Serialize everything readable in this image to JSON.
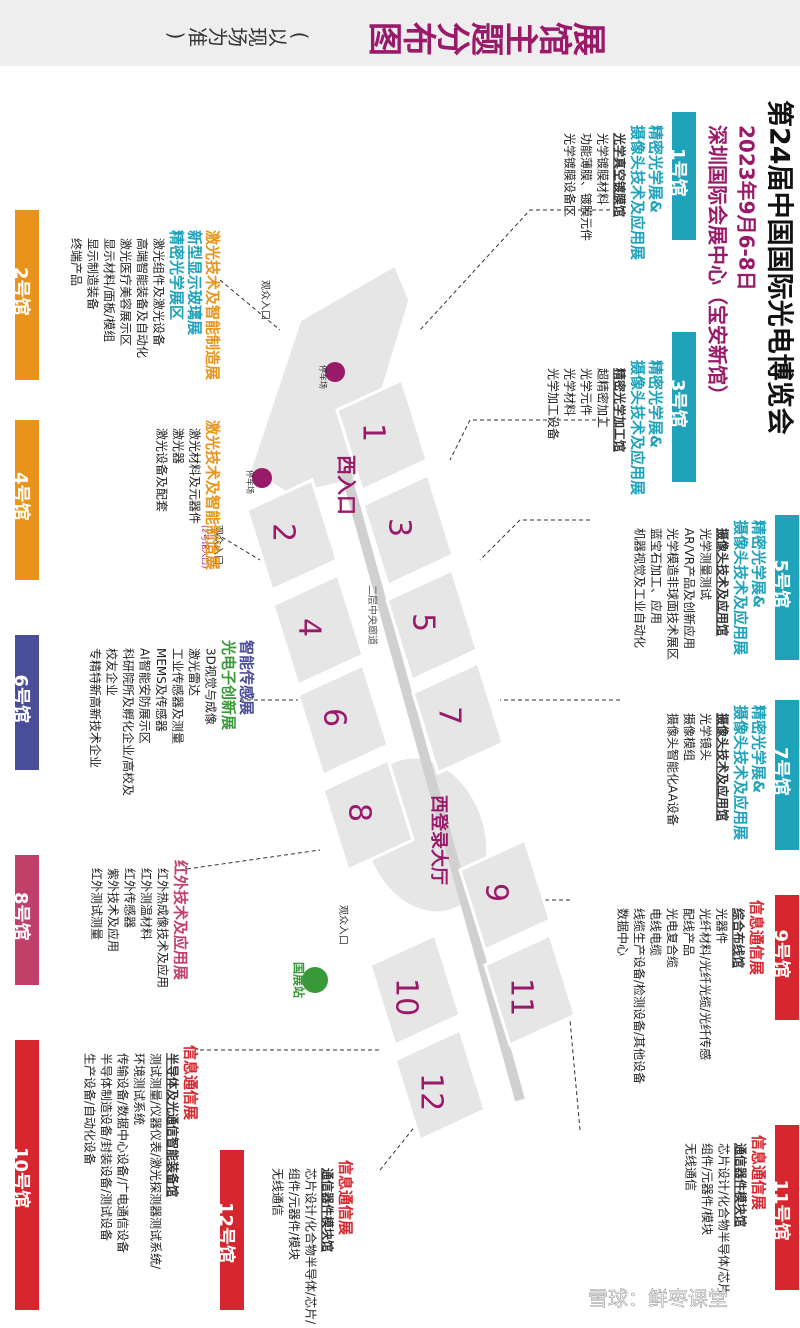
{
  "header": {
    "title": "展馆主题分布图",
    "note": "(以现场为准)",
    "event": "第24届中国国际光电博览会",
    "date": "2023年9月6-8日",
    "venue": "深圳国际会展中心（宝安新馆）"
  },
  "halls": [
    {
      "label": "1号馆",
      "color": "#1ea3ba",
      "exhibitions": [
        {
          "text": "精密光学展&",
          "color": "#1ea3ba"
        },
        {
          "text": "摄像头技术及应用展",
          "color": "#1ea3ba"
        }
      ],
      "sub": "光学真空镀膜馆",
      "items": [
        "光学镀膜材料",
        "功能薄膜、镀膜元件",
        "光学镀膜设备区"
      ]
    },
    {
      "label": "3号馆",
      "color": "#1ea3ba",
      "exhibitions": [
        {
          "text": "精密光学展&",
          "color": "#1ea3ba"
        },
        {
          "text": "摄像头技术及应用展",
          "color": "#1ea3ba"
        }
      ],
      "sub": "精密光学加工馆",
      "items": [
        "超精密加工",
        "光学元件",
        "光学材料",
        "光学加工设备"
      ]
    },
    {
      "label": "5号馆",
      "color": "#1ea3ba",
      "exhibitions": [
        {
          "text": "精密光学展&",
          "color": "#1ea3ba"
        },
        {
          "text": "摄像头技术及应用展",
          "color": "#1ea3ba"
        }
      ],
      "sub": "摄像头技术及应用馆",
      "items": [
        "光学测量测试",
        "AR/VR产品及创新应用",
        "光学模造非球面技术展区",
        "蓝宝石加工、应用",
        "机器视觉及工业自动化"
      ]
    },
    {
      "label": "7号馆",
      "color": "#1ea3ba",
      "exhibitions": [
        {
          "text": "精密光学展&",
          "color": "#1ea3ba"
        },
        {
          "text": "摄像头技术及应用展",
          "color": "#1ea3ba"
        }
      ],
      "sub": "摄像头技术及应用馆",
      "items": [
        "光学镜头",
        "摄像模组",
        "摄像头智能化AA设备"
      ]
    },
    {
      "label": "9号馆",
      "color": "#d7262e",
      "exhibitions": [
        {
          "text": "信息通信展",
          "color": "#d7262e"
        }
      ],
      "sub": "综合布线馆",
      "items": [
        "光器件",
        "光纤材料/光纤光缆/光纤传感",
        "配线产品",
        "光电复合缆",
        "电线电缆",
        "线缆生产设备/检测设备/其他设备",
        "数据中心"
      ]
    },
    {
      "label": "11号馆",
      "color": "#d7262e",
      "exhibitions": [
        {
          "text": "信息通信展",
          "color": "#d7262e"
        }
      ],
      "sub": "通信器件模块馆",
      "items": [
        "芯片设计/化合物半导体/芯片",
        "组件/元器件/模块",
        "无线通信"
      ]
    },
    {
      "label": "12号馆",
      "color": "#d7262e",
      "exhibitions": [
        {
          "text": "信息通信展",
          "color": "#d7262e"
        }
      ],
      "sub": "通信器件模块馆",
      "items": [
        "芯片设计/化合物半导体/芯片/",
        "组件/元器件/模块",
        "无线通信"
      ]
    },
    {
      "label": "10号馆",
      "color": "#d7262e",
      "exhibitions": [
        {
          "text": "信息通信展",
          "color": "#d7262e"
        }
      ],
      "sub": "半导体及光通信智能装备馆",
      "items": [
        "测试测量/仪器仪表/激光探测器测试系统/",
        "环境测试系统",
        "传输设备/数据中心设备/广电通信设备",
        "半导体制造设备/封装设备/测试设备",
        "生产设备/自动化设备"
      ]
    },
    {
      "label": "2号馆",
      "color": "#e8941a",
      "exhibitions": [
        {
          "text": "激光技术及智能制造展",
          "color": "#e8941a"
        },
        {
          "text": "新型显示玻璃展",
          "color": "#1ea3ba"
        },
        {
          "text": "精密光学展区",
          "color": "#1ea3ba"
        }
      ],
      "sub": null,
      "items": [
        "激光组件及激光设备",
        "高端智能装备及自动化",
        "激光医疗美容展示区",
        "显示材料/面板/模组",
        "显示制造装备",
        "终端产品"
      ]
    },
    {
      "label": "4号馆",
      "color": "#e8941a",
      "exhibitions": [
        {
          "text": "激光技术及智能制造展",
          "color": "#e8941a"
        }
      ],
      "sub": null,
      "items": [
        "激光材料及元器件",
        "激光器",
        "激光设备及配套"
      ]
    },
    {
      "label": "6号馆",
      "color": "#4a4d9a",
      "exhibitions": [
        {
          "text": "智能传感展",
          "color": "#4a4d9a"
        },
        {
          "text": "光电子创新展",
          "color": "#3a9a3a"
        }
      ],
      "sub": null,
      "items": [
        "3D视觉与成像",
        "激光雷达",
        "工业传感器及测量",
        "MEMS及传感器",
        "AI智能安防展示区",
        "科研院所及孵化企业/高校及",
        "校友企业",
        "专精特新高新技术企业"
      ]
    },
    {
      "label": "8号馆",
      "color": "#c0406a",
      "exhibitions": [
        {
          "text": "红外技术及应用展",
          "color": "#c0406a"
        }
      ],
      "sub": null,
      "items": [
        "红外热成像技术及应用",
        "红外测温材料",
        "红外传感器",
        "紫外技术及应用",
        "红外测试测量"
      ]
    }
  ],
  "map": {
    "hall_numbers": [
      "1",
      "2",
      "3",
      "4",
      "5",
      "6",
      "7",
      "8",
      "9",
      "10",
      "11",
      "12"
    ],
    "entrance": "西入口",
    "lobby": "西登录大厅",
    "corridor": "二层中央廊道",
    "visitor_entrances": [
      "观众入口",
      "观众入口",
      "观众入口"
    ],
    "entrance_note": "(2号馆入口)",
    "parking": [
      "停车场",
      "停车场"
    ],
    "metro": "国展站"
  },
  "watermark": "雪球：鲜枣课堂"
}
